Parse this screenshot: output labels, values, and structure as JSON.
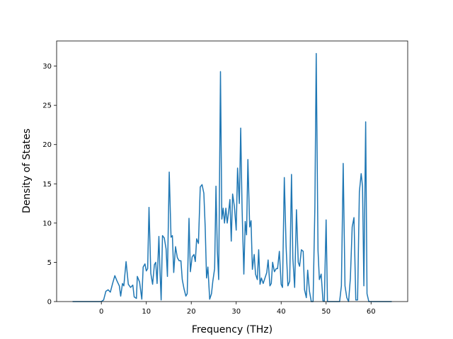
{
  "chart_data": {
    "type": "line",
    "xlabel": "Frequency (THz)",
    "ylabel": "Density of States",
    "x": [
      -6.4,
      0,
      0.5,
      1,
      1.5,
      2,
      2.5,
      3,
      3.5,
      4,
      4.3,
      4.7,
      5,
      5.5,
      6,
      6.5,
      7,
      7.3,
      7.8,
      8,
      8.5,
      9,
      9.3,
      9.7,
      10,
      10.3,
      10.6,
      11,
      11.4,
      11.8,
      12.1,
      12.4,
      12.8,
      13,
      13.3,
      13.6,
      14,
      14.4,
      14.7,
      15.1,
      15.5,
      15.8,
      16.1,
      16.5,
      16.9,
      17.3,
      17.7,
      18,
      18.4,
      18.8,
      19.1,
      19.5,
      19.8,
      20.2,
      20.6,
      20.9,
      21.2,
      21.6,
      22,
      22.4,
      22.8,
      23.1,
      23.4,
      23.7,
      24.1,
      24.5,
      24.8,
      25.2,
      25.5,
      25.8,
      26.1,
      26.5,
      26.8,
      27.1,
      27.4,
      27.7,
      28,
      28.3,
      28.6,
      28.9,
      29.2,
      29.6,
      30,
      30.3,
      30.7,
      31,
      31.3,
      31.7,
      32,
      32.3,
      32.6,
      33,
      33.3,
      33.6,
      34,
      34.3,
      34.7,
      35,
      35.3,
      35.6,
      36,
      36.4,
      36.8,
      37.1,
      37.5,
      37.8,
      38.1,
      38.5,
      38.9,
      39.2,
      39.6,
      40,
      40.3,
      40.7,
      41.1,
      41.5,
      41.9,
      42.3,
      42.6,
      43,
      43.4,
      43.8,
      44.1,
      44.5,
      44.9,
      45.2,
      45.6,
      45.9,
      46.3,
      46.7,
      47.1,
      47.5,
      47.8,
      48.2,
      48.5,
      48.9,
      49.3,
      49.6,
      50,
      50.3,
      51,
      53,
      53.4,
      53.8,
      54.2,
      54.6,
      55,
      55.4,
      55.8,
      56.2,
      56.6,
      57,
      57.4,
      57.8,
      58.1,
      58.4,
      58.8,
      59.1,
      59.5,
      64.6
    ],
    "series": [
      {
        "name": "DOS",
        "color": "#1f77b4",
        "values": [
          0,
          0,
          0.2,
          1.3,
          1.5,
          1.2,
          2.3,
          3.3,
          2.6,
          2.0,
          0.7,
          2.3,
          2.0,
          5.1,
          2.2,
          1.8,
          2.1,
          0.6,
          0.4,
          3.2,
          2.5,
          0.3,
          4.4,
          4.8,
          3.9,
          4.2,
          12.0,
          3.6,
          2.2,
          4.7,
          5.0,
          2.3,
          8.3,
          4.6,
          0.2,
          8.4,
          8.1,
          6.7,
          3.2,
          16.5,
          8.2,
          8.4,
          3.7,
          7.0,
          5.6,
          5.2,
          5.2,
          2.8,
          1.6,
          0.7,
          1.0,
          10.6,
          3.8,
          5.7,
          6.0,
          5.1,
          8.0,
          7.4,
          14.6,
          14.9,
          13.8,
          9.5,
          3.0,
          4.4,
          0.3,
          1.0,
          2.6,
          4.2,
          14.7,
          6.5,
          2.8,
          29.3,
          10.5,
          11.9,
          10.0,
          11.9,
          10.0,
          11.4,
          13.0,
          7.7,
          13.7,
          12.1,
          9.1,
          17.0,
          12.5,
          22.1,
          12.0,
          3.5,
          10.2,
          8.5,
          18.1,
          9.5,
          10.3,
          4.1,
          6.0,
          3.5,
          2.8,
          6.6,
          2.2,
          3.0,
          2.3,
          3.0,
          3.7,
          5.3,
          2.0,
          2.3,
          5.0,
          3.8,
          4.2,
          4.2,
          6.4,
          2.2,
          1.8,
          15.8,
          7.0,
          2.0,
          2.6,
          16.2,
          5.5,
          1.8,
          11.7,
          5.0,
          4.5,
          6.6,
          6.4,
          1.5,
          0.5,
          4.0,
          1.3,
          0,
          0,
          12,
          31.6,
          6.5,
          2.8,
          3.5,
          0.1,
          0,
          10.4,
          0,
          0,
          0,
          2.0,
          17.6,
          2.0,
          0.5,
          0,
          3.0,
          9.5,
          10.7,
          0.2,
          0.2,
          14,
          16.3,
          14.7,
          2.0,
          22.9,
          1.0,
          0,
          0
        ]
      }
    ],
    "xlim": [
      -9.95,
      68.15
    ],
    "ylim": [
      0,
      33.2
    ],
    "xticks": [
      0,
      10,
      20,
      30,
      40,
      50,
      60
    ],
    "yticks": [
      0,
      5,
      10,
      15,
      20,
      25,
      30
    ]
  }
}
